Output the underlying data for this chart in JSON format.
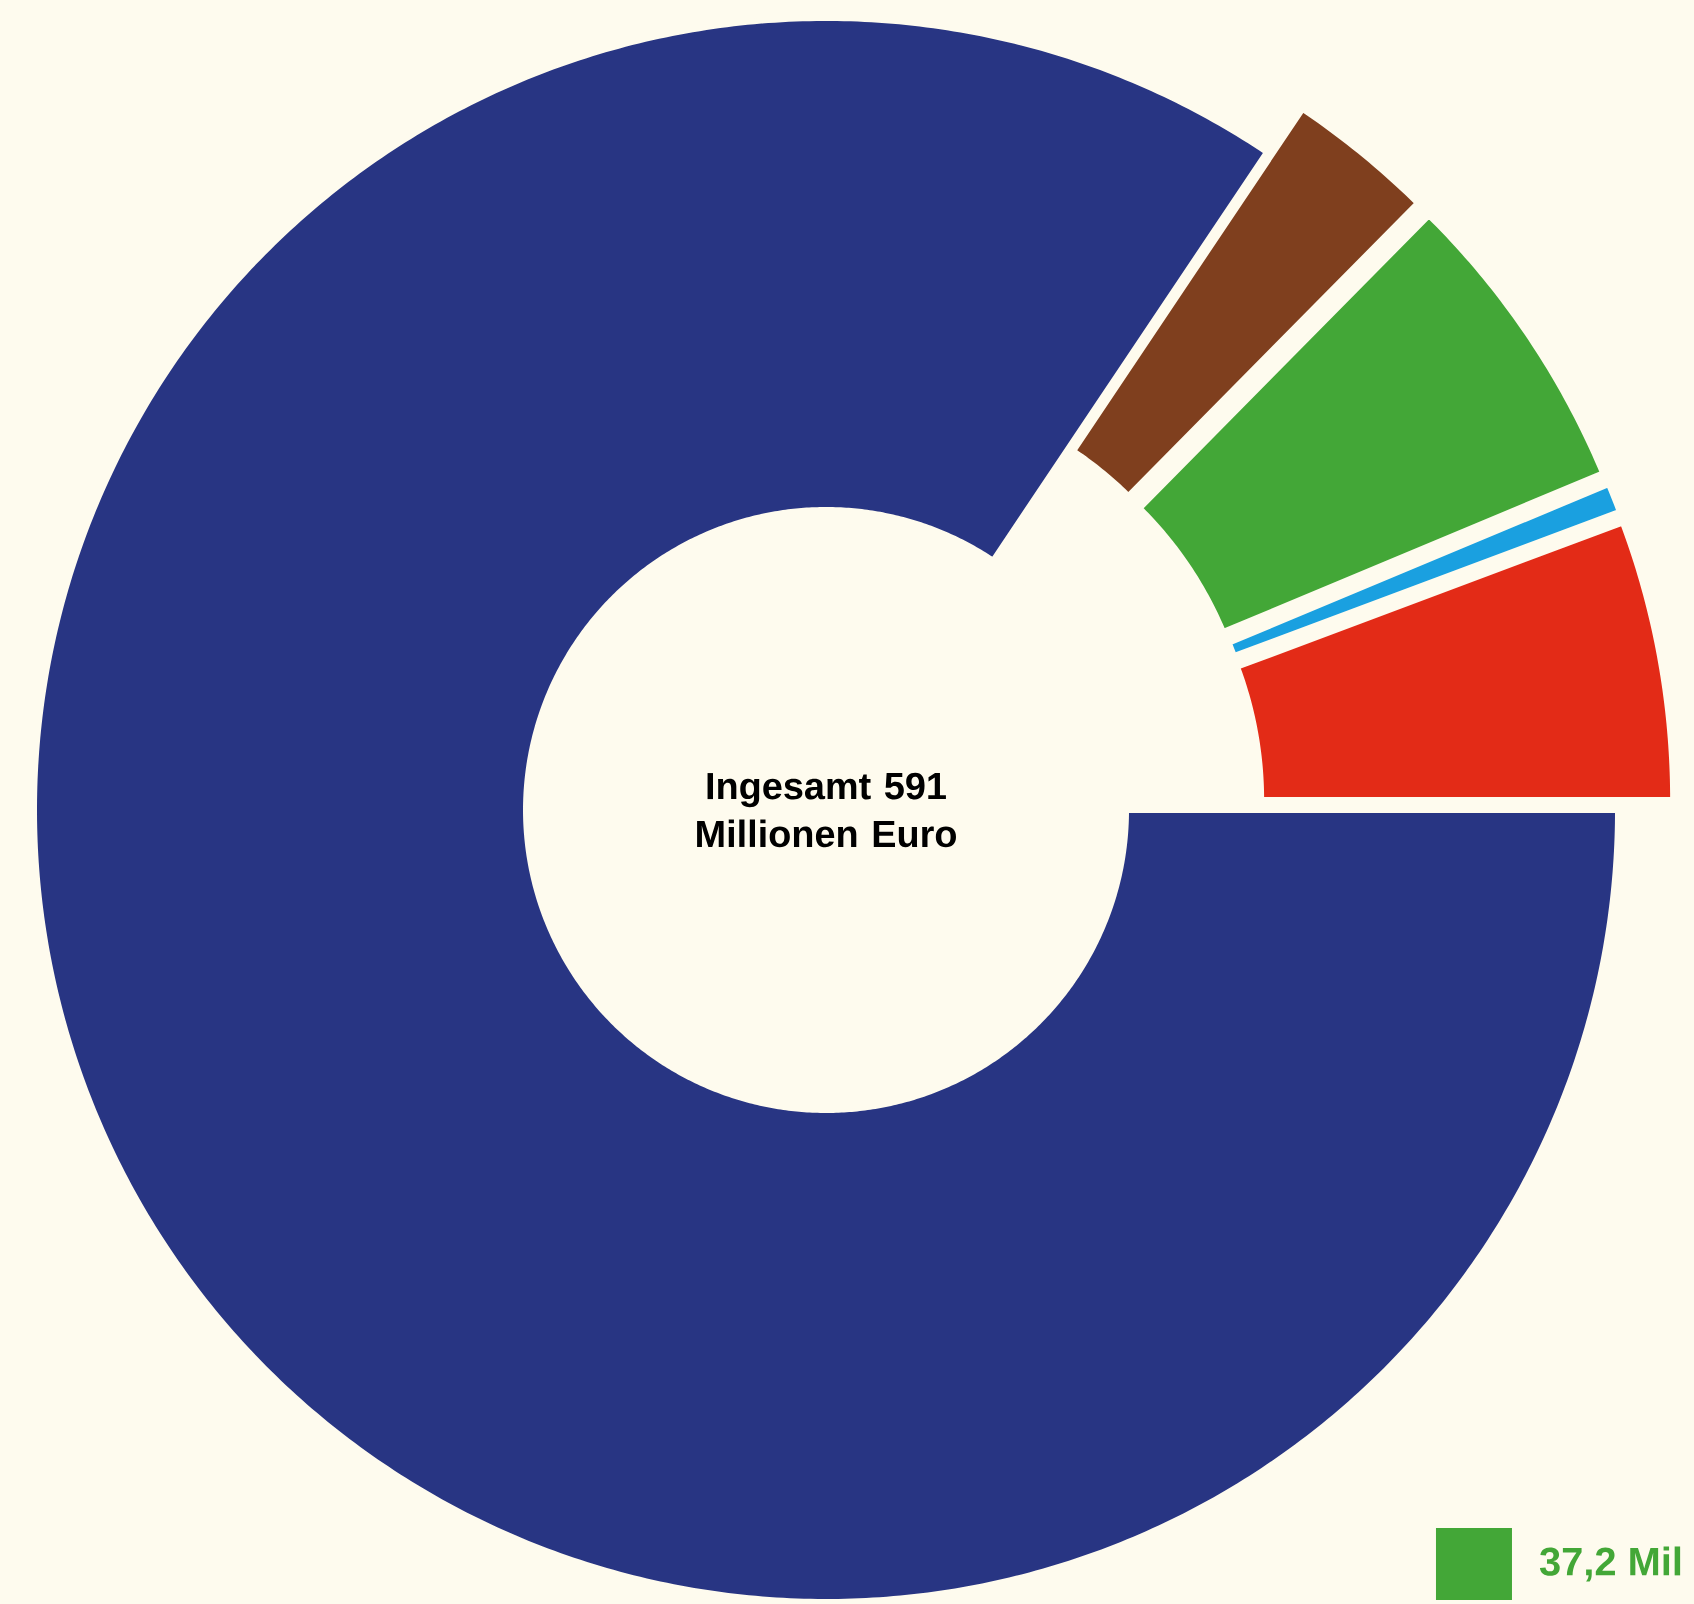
{
  "chart_data": {
    "type": "donut",
    "title": "Ingesamt 591 Millionen Euro",
    "categories": [
      null,
      null,
      "37,2 Mil",
      null,
      null
    ],
    "values": [
      84.4,
      3.0,
      6.3,
      0.6,
      5.7
    ],
    "colors": [
      "#283583",
      "#7f3f1e",
      "#43a737",
      "#1aa0e0",
      "#e32b17"
    ],
    "legend": "bottom right"
  }
}
